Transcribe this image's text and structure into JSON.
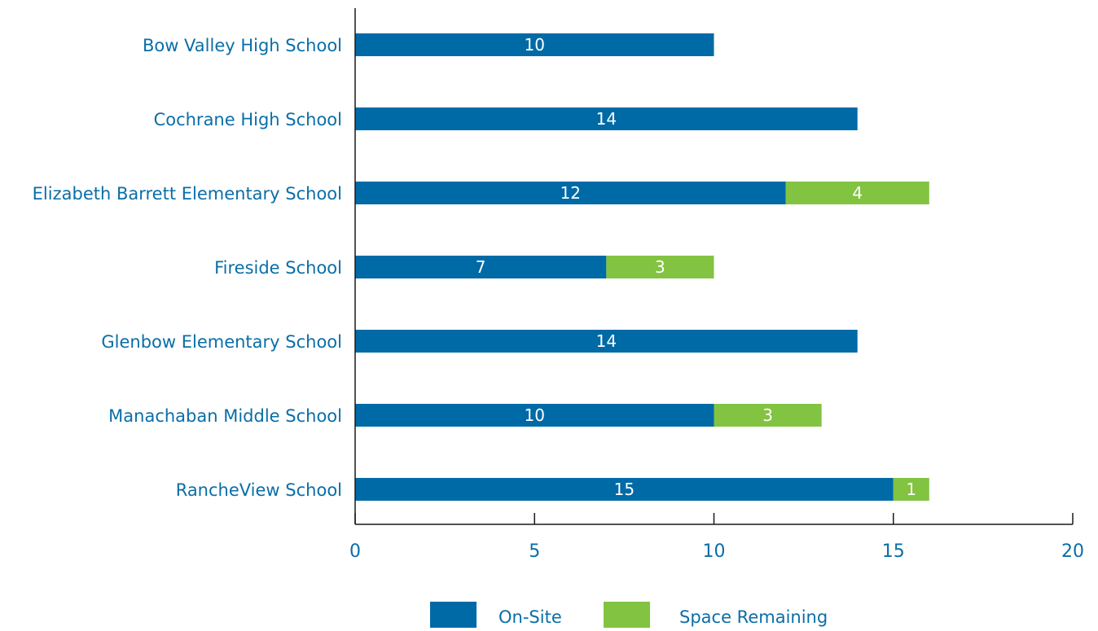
{
  "chart_data": {
    "type": "bar",
    "orientation": "horizontal",
    "stacked": true,
    "categories": [
      "Bow Valley High School",
      "Cochrane High School",
      "Elizabeth Barrett Elementary School",
      "Fireside School",
      "Glenbow Elementary School",
      "Manachaban Middle School",
      "RancheView School"
    ],
    "series": [
      {
        "name": "On-Site",
        "color": "#006aa6",
        "values": [
          10,
          14,
          12,
          7,
          14,
          10,
          15
        ]
      },
      {
        "name": "Space Remaining",
        "color": "#82c341",
        "values": [
          0,
          0,
          4,
          3,
          0,
          3,
          1
        ]
      }
    ],
    "xlim": [
      0,
      20
    ],
    "xticks": [
      0,
      5,
      10,
      15,
      20
    ],
    "grid": false,
    "legend_position": "bottom",
    "title": "",
    "xlabel": "",
    "ylabel": ""
  }
}
